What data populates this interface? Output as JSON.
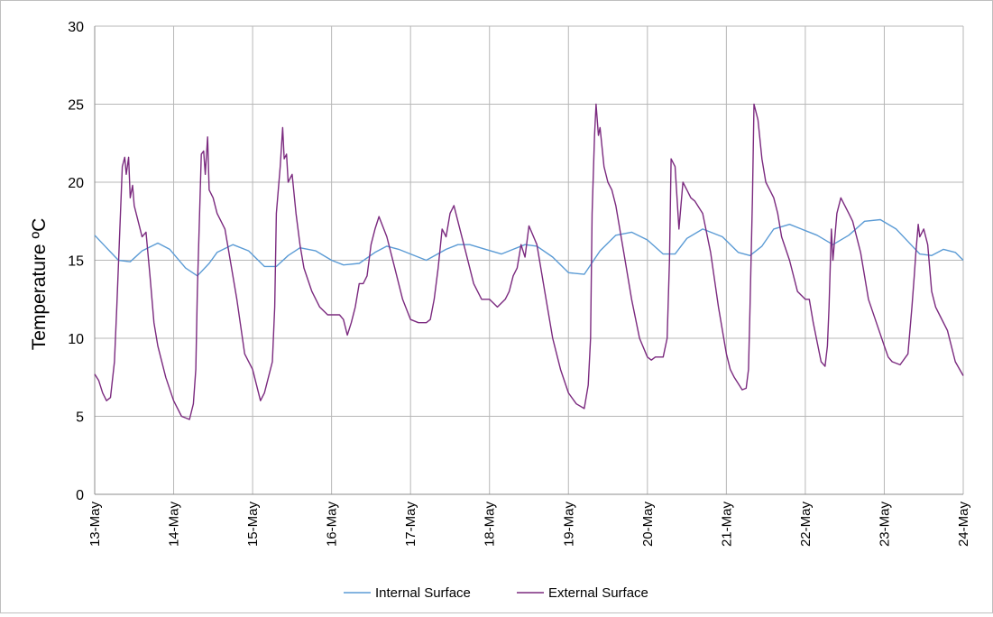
{
  "chart_data": {
    "type": "line",
    "ylabel": "Temperature ºC",
    "xlabel": "",
    "ylim": [
      0,
      30
    ],
    "yticks": [
      0,
      5,
      10,
      15,
      20,
      25,
      30
    ],
    "xlim": [
      "13-May",
      "24-May"
    ],
    "xticks": [
      "13-May",
      "14-May",
      "15-May",
      "16-May",
      "17-May",
      "18-May",
      "19-May",
      "20-May",
      "21-May",
      "22-May",
      "23-May",
      "24-May"
    ],
    "grid": true,
    "legend_position": "bottom",
    "x_unit": "days from 13-May",
    "series": [
      {
        "name": "Internal Surface",
        "color": "#5b9bd5",
        "x": [
          0,
          0.15,
          0.3,
          0.45,
          0.6,
          0.8,
          0.95,
          1.15,
          1.3,
          1.45,
          1.55,
          1.75,
          1.95,
          2.15,
          2.3,
          2.45,
          2.6,
          2.8,
          3.0,
          3.15,
          3.35,
          3.55,
          3.7,
          3.85,
          4.0,
          4.2,
          4.45,
          4.6,
          4.75,
          4.95,
          5.15,
          5.3,
          5.45,
          5.6,
          5.8,
          6.0,
          6.2,
          6.4,
          6.6,
          6.8,
          7.0,
          7.2,
          7.35,
          7.5,
          7.7,
          7.95,
          8.15,
          8.3,
          8.45,
          8.6,
          8.8,
          8.95,
          9.15,
          9.35,
          9.55,
          9.75,
          9.95,
          10.15,
          10.3,
          10.45,
          10.6,
          10.75,
          10.9,
          11.0
        ],
        "y": [
          16.6,
          15.8,
          15.0,
          14.9,
          15.6,
          16.1,
          15.7,
          14.5,
          14.0,
          14.8,
          15.5,
          16.0,
          15.6,
          14.6,
          14.6,
          15.3,
          15.8,
          15.6,
          15.0,
          14.7,
          14.8,
          15.5,
          15.9,
          15.7,
          15.4,
          15.0,
          15.7,
          16.0,
          16.0,
          15.7,
          15.4,
          15.7,
          16.0,
          15.9,
          15.2,
          14.2,
          14.1,
          15.6,
          16.6,
          16.8,
          16.3,
          15.4,
          15.4,
          16.4,
          17.0,
          16.5,
          15.5,
          15.3,
          15.9,
          17.0,
          17.3,
          17.0,
          16.6,
          16.0,
          16.6,
          17.5,
          17.6,
          17.0,
          16.2,
          15.4,
          15.3,
          15.7,
          15.5,
          15.0
        ]
      },
      {
        "name": "External Surface",
        "color": "#7b2a7f",
        "x": [
          0,
          0.05,
          0.1,
          0.15,
          0.2,
          0.25,
          0.28,
          0.35,
          0.38,
          0.4,
          0.43,
          0.45,
          0.48,
          0.5,
          0.55,
          0.6,
          0.65,
          0.7,
          0.75,
          0.8,
          0.9,
          1.0,
          1.1,
          1.2,
          1.25,
          1.28,
          1.3,
          1.35,
          1.38,
          1.4,
          1.43,
          1.45,
          1.5,
          1.55,
          1.6,
          1.65,
          1.7,
          1.8,
          1.9,
          2.0,
          2.1,
          2.15,
          2.2,
          2.25,
          2.28,
          2.3,
          2.35,
          2.38,
          2.4,
          2.43,
          2.45,
          2.5,
          2.55,
          2.6,
          2.65,
          2.75,
          2.85,
          2.95,
          3.0,
          3.1,
          3.15,
          3.2,
          3.25,
          3.3,
          3.35,
          3.4,
          3.45,
          3.5,
          3.55,
          3.6,
          3.7,
          3.8,
          3.9,
          4.0,
          4.1,
          4.2,
          4.25,
          4.3,
          4.35,
          4.4,
          4.45,
          4.5,
          4.55,
          4.6,
          4.7,
          4.8,
          4.9,
          5.0,
          5.1,
          5.2,
          5.25,
          5.3,
          5.35,
          5.4,
          5.45,
          5.5,
          5.6,
          5.7,
          5.8,
          5.9,
          6.0,
          6.1,
          6.2,
          6.25,
          6.28,
          6.3,
          6.33,
          6.35,
          6.38,
          6.4,
          6.45,
          6.5,
          6.55,
          6.6,
          6.7,
          6.8,
          6.9,
          7.0,
          7.05,
          7.1,
          7.2,
          7.25,
          7.28,
          7.3,
          7.35,
          7.4,
          7.45,
          7.5,
          7.55,
          7.6,
          7.7,
          7.8,
          7.9,
          8.0,
          8.05,
          8.1,
          8.2,
          8.25,
          8.28,
          8.3,
          8.33,
          8.35,
          8.4,
          8.45,
          8.5,
          8.55,
          8.6,
          8.65,
          8.7,
          8.8,
          8.9,
          9.0,
          9.05,
          9.1,
          9.2,
          9.25,
          9.28,
          9.3,
          9.33,
          9.35,
          9.4,
          9.45,
          9.5,
          9.55,
          9.6,
          9.7,
          9.8,
          9.9,
          10.0,
          10.05,
          10.1,
          10.2,
          10.3,
          10.35,
          10.38,
          10.4,
          10.43,
          10.45,
          10.5,
          10.55,
          10.6,
          10.65,
          10.7,
          10.8,
          10.9,
          11.0
        ],
        "y": [
          7.7,
          7.3,
          6.5,
          6.0,
          6.2,
          8.5,
          12.0,
          21.0,
          21.6,
          20.5,
          21.6,
          19.0,
          19.8,
          18.5,
          17.5,
          16.5,
          16.8,
          14.0,
          11.0,
          9.5,
          7.5,
          6.0,
          5.0,
          4.8,
          5.8,
          8.0,
          13.0,
          21.8,
          22.0,
          20.5,
          22.9,
          19.5,
          19.0,
          18.0,
          17.5,
          17.0,
          15.5,
          12.5,
          9.0,
          8.0,
          6.0,
          6.5,
          7.5,
          8.5,
          12.0,
          18.0,
          21.0,
          23.5,
          21.5,
          21.8,
          20.0,
          20.5,
          18.0,
          16.0,
          14.5,
          13.0,
          12.0,
          11.5,
          11.5,
          11.5,
          11.2,
          10.2,
          11.0,
          12.0,
          13.5,
          13.5,
          14.0,
          16.0,
          17.0,
          17.8,
          16.5,
          14.5,
          12.5,
          11.2,
          11.0,
          11.0,
          11.2,
          12.5,
          14.5,
          17.0,
          16.5,
          18.0,
          18.5,
          17.5,
          15.5,
          13.5,
          12.5,
          12.5,
          12.0,
          12.5,
          13.0,
          14.0,
          14.5,
          16.0,
          15.2,
          17.2,
          16.0,
          13.0,
          10.0,
          8.0,
          6.5,
          5.8,
          5.5,
          7.0,
          10.0,
          18.0,
          23.0,
          25.0,
          23.0,
          23.5,
          21.0,
          20.0,
          19.5,
          18.5,
          15.5,
          12.5,
          10.0,
          8.8,
          8.6,
          8.8,
          8.8,
          10.0,
          15.0,
          21.5,
          21.0,
          17.0,
          20.0,
          19.5,
          19.0,
          18.8,
          18.0,
          15.5,
          12.0,
          9.0,
          8.0,
          7.5,
          6.7,
          6.8,
          8.0,
          12.0,
          19.0,
          25.0,
          24.0,
          21.5,
          20.0,
          19.5,
          19.0,
          18.0,
          16.5,
          15.0,
          13.0,
          12.5,
          12.5,
          11.0,
          8.5,
          8.2,
          9.5,
          12.0,
          17.0,
          15.0,
          18.0,
          19.0,
          18.5,
          18.0,
          17.5,
          15.5,
          12.5,
          11.0,
          9.5,
          8.8,
          8.5,
          8.3,
          9.0,
          12.0,
          14.0,
          15.5,
          17.3,
          16.5,
          17.0,
          16.0,
          13.0,
          12.0,
          11.5,
          10.5,
          8.5,
          7.6
        ]
      }
    ]
  }
}
